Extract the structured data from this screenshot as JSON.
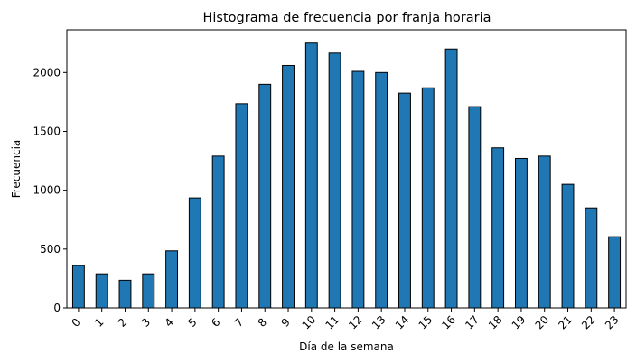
{
  "chart_data": {
    "type": "bar",
    "title": "Histograma de frecuencia por franja horaria",
    "xlabel": "Día de la semana",
    "ylabel": "Frecuencia",
    "categories": [
      "0",
      "1",
      "2",
      "3",
      "4",
      "5",
      "6",
      "7",
      "8",
      "9",
      "10",
      "11",
      "12",
      "13",
      "14",
      "15",
      "16",
      "17",
      "18",
      "19",
      "20",
      "21",
      "22",
      "23"
    ],
    "values": [
      360,
      290,
      235,
      290,
      485,
      935,
      1290,
      1735,
      1900,
      2060,
      2250,
      2165,
      2010,
      2000,
      1825,
      1870,
      2200,
      1710,
      1360,
      1270,
      1290,
      1050,
      850,
      605
    ],
    "ylim": [
      0,
      2363
    ],
    "yticks": [
      0,
      500,
      1000,
      1500,
      2000
    ],
    "grid": false,
    "bar_color": "#1f77b4",
    "edge_color": "#000000",
    "xtick_rotation": -45
  }
}
